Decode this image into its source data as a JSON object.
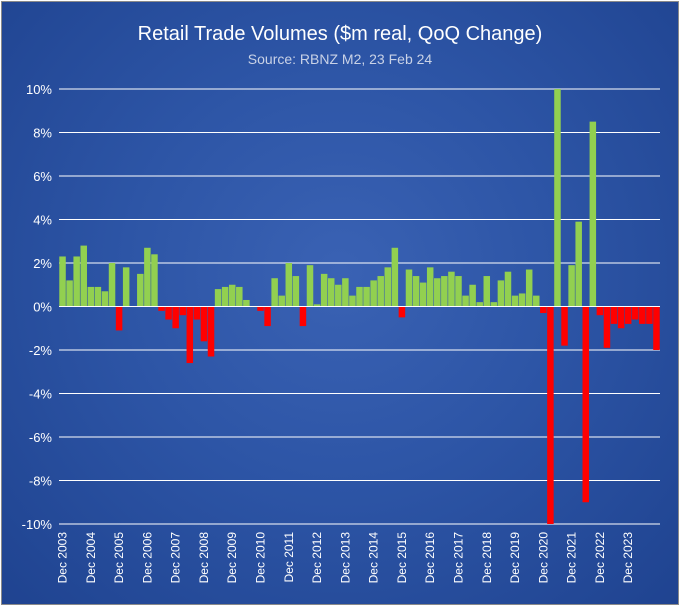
{
  "chart_data": {
    "type": "bar",
    "title": "Retail Trade Volumes ($m real, QoQ Change)",
    "subtitle": "Source: RBNZ M2, 23 Feb 24",
    "xlabel": "",
    "ylabel": "",
    "ylim": [
      -10,
      10
    ],
    "yticks": [
      10,
      8,
      6,
      4,
      2,
      0,
      -2,
      -4,
      -6,
      -8,
      -10
    ],
    "ytick_labels": [
      "10%",
      "8%",
      "6%",
      "4%",
      "2%",
      "0%",
      "-2%",
      "-4%",
      "-6%",
      "-8%",
      "-10%"
    ],
    "xtick_labels": [
      "Dec 2003",
      "Dec 2004",
      "Dec 2005",
      "Dec 2006",
      "Dec 2007",
      "Dec 2008",
      "Dec 2009",
      "Dec 2010",
      "Dec 2011",
      "Dec 2012",
      "Dec 2013",
      "Dec 2014",
      "Dec 2015",
      "Dec 2016",
      "Dec 2017",
      "Dec 2018",
      "Dec 2019",
      "Dec 2020",
      "Dec 2021",
      "Dec 2022",
      "Dec 2023"
    ],
    "grid": true,
    "positive_color": "#92d050",
    "negative_color": "#ff0000",
    "series": [
      {
        "name": "QoQ Change (%)",
        "start": "Dec 2003",
        "frequency": "quarterly",
        "values": [
          2.3,
          1.2,
          2.3,
          2.8,
          0.9,
          0.9,
          0.7,
          2.0,
          -1.1,
          1.8,
          0.0,
          1.5,
          2.7,
          2.4,
          -0.2,
          -0.6,
          -1.0,
          -0.4,
          -2.6,
          -0.6,
          -1.6,
          -2.3,
          0.8,
          0.9,
          1.0,
          0.9,
          0.3,
          0.0,
          -0.2,
          -0.9,
          1.3,
          0.5,
          2.0,
          1.4,
          -0.9,
          1.9,
          0.1,
          1.5,
          1.3,
          1.0,
          1.3,
          0.5,
          0.9,
          0.9,
          1.2,
          1.4,
          1.8,
          2.7,
          -0.5,
          1.7,
          1.4,
          1.1,
          1.8,
          1.3,
          1.4,
          1.6,
          1.4,
          0.5,
          1.0,
          0.2,
          1.4,
          0.2,
          1.2,
          1.6,
          0.5,
          0.6,
          1.7,
          0.5,
          -0.3,
          -10.0,
          10.0,
          -1.8,
          1.9,
          3.9,
          -9.0,
          8.5,
          -0.4,
          -1.9,
          -0.8,
          -1.0,
          -0.8,
          -0.6,
          -0.8,
          -0.8,
          -2.0
        ]
      }
    ]
  }
}
